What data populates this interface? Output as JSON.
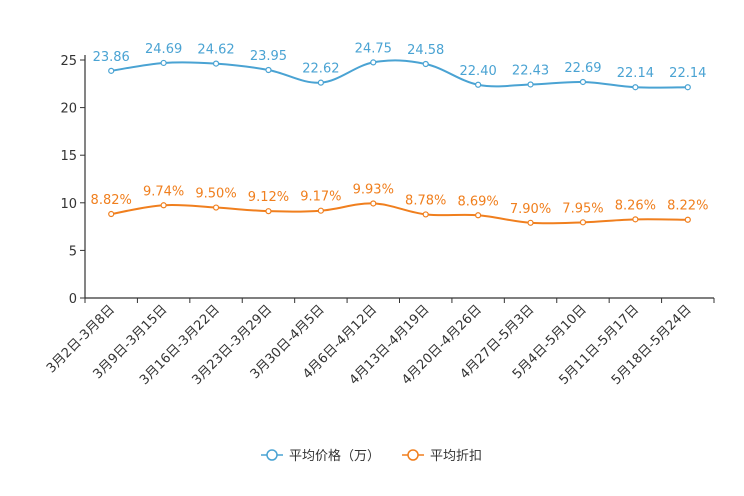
{
  "chart_data": {
    "type": "line",
    "title": "",
    "xlabel": "",
    "ylabel": "",
    "ylim": [
      0,
      25
    ],
    "yticks": [
      0,
      5,
      10,
      15,
      20,
      25
    ],
    "grid": false,
    "legend_position": "bottom-center",
    "categories": [
      "3月2日-3月8日",
      "3月9日-3月15日",
      "3月16日-3月22日",
      "3月23日-3月29日",
      "3月30日-4月5日",
      "4月6日-4月12日",
      "4月13日-4月19日",
      "4月20日-4月26日",
      "4月27日-5月3日",
      "5月4日-5月10日",
      "5月11日-5月17日",
      "5月18日-5月24日"
    ],
    "series": [
      {
        "name": "平均价格（万）",
        "color": "#4aa3d3",
        "values": [
          23.86,
          24.69,
          24.62,
          23.95,
          22.62,
          24.75,
          24.58,
          22.4,
          22.43,
          22.69,
          22.14,
          22.14
        ],
        "labels": [
          "23.86",
          "24.69",
          "24.62",
          "23.95",
          "22.62",
          "24.75",
          "24.58",
          "22.40",
          "22.43",
          "22.69",
          "22.14",
          "22.14"
        ]
      },
      {
        "name": "平均折扣",
        "color": "#f07f1e",
        "values": [
          8.82,
          9.74,
          9.5,
          9.12,
          9.17,
          9.93,
          8.78,
          8.69,
          7.9,
          7.95,
          8.26,
          8.22
        ],
        "labels": [
          "8.82%",
          "9.74%",
          "9.50%",
          "9.12%",
          "9.17%",
          "9.93%",
          "8.78%",
          "8.69%",
          "7.90%",
          "7.95%",
          "8.26%",
          "8.22%"
        ]
      }
    ]
  }
}
